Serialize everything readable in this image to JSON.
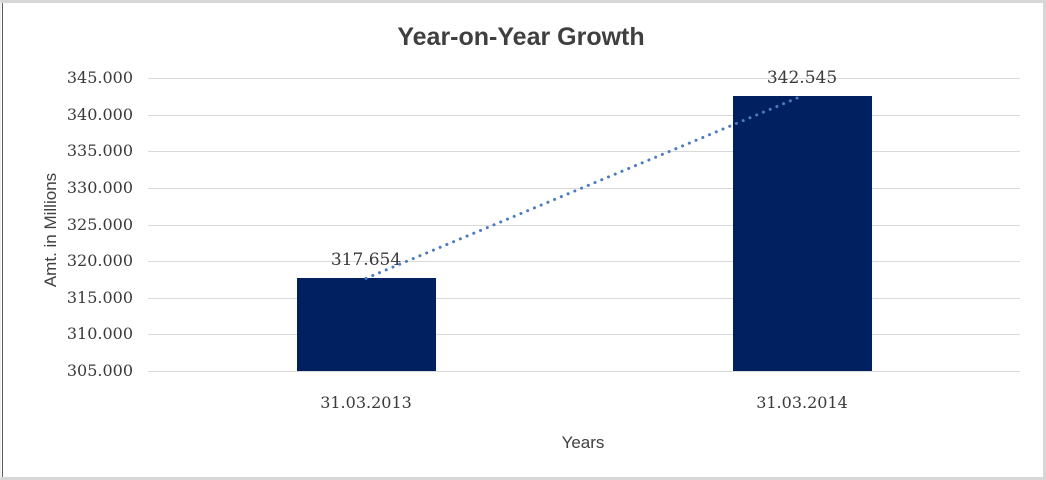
{
  "chart_data": {
    "type": "bar",
    "title": "Year-on-Year Growth",
    "xlabel": "Years",
    "ylabel": "Amt. in Millions",
    "categories": [
      "31.03.2013",
      "31.03.2014"
    ],
    "values": [
      317.654,
      342.545
    ],
    "data_labels": [
      "317.654",
      "342.545"
    ],
    "ylim": [
      305,
      345
    ],
    "ytick_step": 5,
    "ytick_labels": [
      "345.000",
      "340.000",
      "335.000",
      "330.000",
      "325.000",
      "320.000",
      "315.000",
      "310.000",
      "305.000"
    ],
    "grid": true,
    "legend": false,
    "trendline": {
      "style": "dotted",
      "between_bar_tops": true
    },
    "colors": {
      "bar": "#002060",
      "trendline": "#4a7cbe",
      "gridline": "#d9d9d9",
      "title": "#3f3f3f",
      "tick_label": "#3a3a3a",
      "axis_title": "#404040",
      "window_border": "#d7d7d7",
      "background": "#ffffff"
    }
  }
}
